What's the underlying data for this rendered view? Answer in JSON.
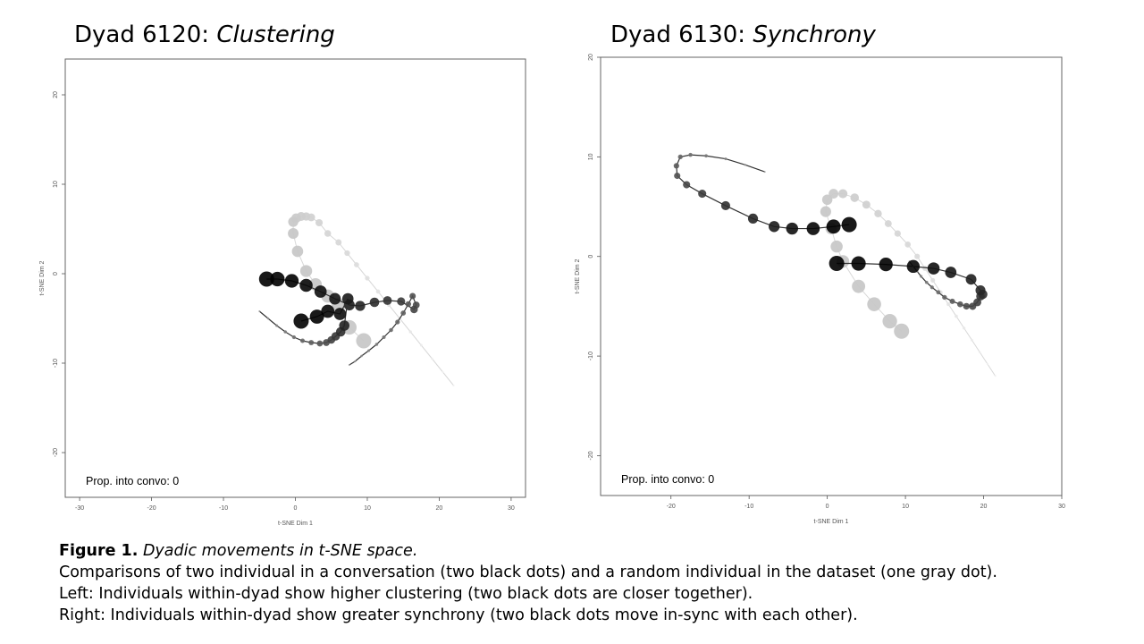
{
  "colors": {
    "dyad": "#000000",
    "random": "#c8c8c8",
    "axis": "#555555",
    "text": "#000000"
  },
  "chart_data": [
    {
      "type": "scatter",
      "title_prefix": "Dyad 6120: ",
      "title_emph": "Clustering",
      "xlabel": "t-SNE Dim 1",
      "ylabel": "t-SNE Dim 2",
      "xlim": [
        -32,
        32
      ],
      "ylim": [
        -25,
        24
      ],
      "xticks": [
        -30,
        -20,
        -10,
        0,
        10,
        20,
        30
      ],
      "yticks": [
        -20,
        -10,
        0,
        10,
        20
      ],
      "annotation": "Prop. into convo: 0",
      "series": [
        {
          "name": "random individual",
          "color": "#c8c8c8",
          "x": [
            22.0,
            20.5,
            19.0,
            17.5,
            16.0,
            14.5,
            13.0,
            11.5,
            10.0,
            8.5,
            7.2,
            6.0,
            4.5,
            3.3,
            2.2,
            1.5,
            0.8,
            0.1,
            -0.3,
            -0.3,
            0.3,
            1.5,
            2.8,
            4.5,
            6.0,
            7.5,
            9.5
          ],
          "y": [
            -12.5,
            -11.0,
            -9.5,
            -8.0,
            -6.5,
            -5.0,
            -3.5,
            -2.0,
            -0.5,
            1.0,
            2.3,
            3.5,
            4.5,
            5.7,
            6.3,
            6.4,
            6.4,
            6.2,
            5.8,
            4.5,
            2.5,
            0.3,
            -1.2,
            -2.5,
            -3.5,
            -6.0,
            -7.5
          ]
        },
        {
          "name": "dyad individual A",
          "color": "#000000",
          "x": [
            7.5,
            8.3,
            9.2,
            10.2,
            11.3,
            12.3,
            13.3,
            14.2,
            15.0,
            15.7,
            16.3,
            16.8,
            16.5,
            14.7,
            12.8,
            11.0,
            9.0,
            7.5,
            5.5,
            3.5,
            1.5,
            -0.5,
            -2.5,
            -4.0
          ],
          "y": [
            -10.2,
            -9.8,
            -9.2,
            -8.6,
            -7.9,
            -7.1,
            -6.3,
            -5.4,
            -4.4,
            -3.4,
            -2.5,
            -3.5,
            -4.0,
            -3.1,
            -3.0,
            -3.2,
            -3.6,
            -3.5,
            -2.8,
            -2.0,
            -1.3,
            -0.8,
            -0.6,
            -0.6
          ]
        },
        {
          "name": "dyad individual B",
          "color": "#000000",
          "x": [
            -5.0,
            -3.8,
            -2.6,
            -1.4,
            -0.2,
            1.0,
            2.2,
            3.4,
            4.3,
            5.0,
            5.6,
            6.3,
            6.8,
            7.3,
            6.2,
            4.5,
            3.0,
            0.8
          ],
          "y": [
            -4.2,
            -5.0,
            -5.8,
            -6.5,
            -7.1,
            -7.5,
            -7.7,
            -7.8,
            -7.7,
            -7.4,
            -7.0,
            -6.5,
            -5.8,
            -2.8,
            -4.5,
            -4.2,
            -4.8,
            -5.3
          ]
        }
      ]
    },
    {
      "type": "scatter",
      "title_prefix": "Dyad 6130: ",
      "title_emph": "Synchrony",
      "xlabel": "t-SNE Dim 1",
      "ylabel": "t-SNE Dim 2",
      "xlim": [
        -29,
        30
      ],
      "ylim": [
        -24,
        20
      ],
      "xticks": [
        -20,
        -10,
        0,
        10,
        20,
        30
      ],
      "yticks": [
        -20,
        -10,
        0,
        10,
        20
      ],
      "annotation": "Prop. into convo: 0",
      "series": [
        {
          "name": "random individual",
          "color": "#c8c8c8",
          "x": [
            21.5,
            20.5,
            19.5,
            18.5,
            17.5,
            16.5,
            15.5,
            14.5,
            13.5,
            12.5,
            11.5,
            10.3,
            9.0,
            7.8,
            6.5,
            5.0,
            3.5,
            2.0,
            0.8,
            0.0,
            -0.2,
            0.5,
            1.2,
            2.0,
            4.0,
            6.0,
            8.0,
            9.5
          ],
          "y": [
            -12.0,
            -10.8,
            -9.6,
            -8.4,
            -7.2,
            -6.0,
            -4.8,
            -3.6,
            -2.4,
            -1.2,
            0.0,
            1.2,
            2.3,
            3.3,
            4.3,
            5.2,
            5.9,
            6.3,
            6.3,
            5.7,
            4.5,
            2.8,
            1.0,
            -0.5,
            -3.0,
            -4.8,
            -6.5,
            -7.5
          ]
        },
        {
          "name": "dyad individual A",
          "color": "#000000",
          "x": [
            -8.0,
            -10.5,
            -13.0,
            -15.5,
            -17.5,
            -18.8,
            -19.3,
            -19.2,
            -18.0,
            -16.0,
            -13.0,
            -9.5,
            -6.8,
            -4.5,
            -1.8,
            0.8,
            2.8
          ],
          "y": [
            8.5,
            9.2,
            9.8,
            10.1,
            10.2,
            10.0,
            9.1,
            8.1,
            7.2,
            6.3,
            5.1,
            3.8,
            3.0,
            2.8,
            2.8,
            3.0,
            3.2
          ]
        },
        {
          "name": "dyad individual B",
          "color": "#000000",
          "x": [
            10.5,
            11.0,
            11.5,
            12.0,
            12.7,
            13.4,
            14.2,
            15.0,
            16.0,
            17.0,
            17.8,
            18.6,
            19.2,
            19.6,
            19.9,
            19.6,
            18.4,
            15.8,
            13.6,
            11.0,
            7.5,
            4.0,
            1.2
          ],
          "y": [
            -0.5,
            -1.0,
            -1.5,
            -2.0,
            -2.6,
            -3.1,
            -3.6,
            -4.1,
            -4.5,
            -4.8,
            -5.0,
            -5.0,
            -4.6,
            -4.0,
            -3.8,
            -3.4,
            -2.3,
            -1.6,
            -1.2,
            -1.0,
            -0.8,
            -0.7,
            -0.7
          ]
        }
      ]
    }
  ],
  "caption": {
    "bold": "Figure 1.",
    "italic": "Dyadic movements in t-SNE space.",
    "line2": "Comparisons of two individual in a conversation (two black dots) and a random individual in the dataset (one gray dot).",
    "line3": "Left: Individuals within-dyad show higher clustering (two black dots are closer together).",
    "line4": "Right: Individuals within-dyad show greater synchrony (two black dots move in-sync with each other)."
  }
}
